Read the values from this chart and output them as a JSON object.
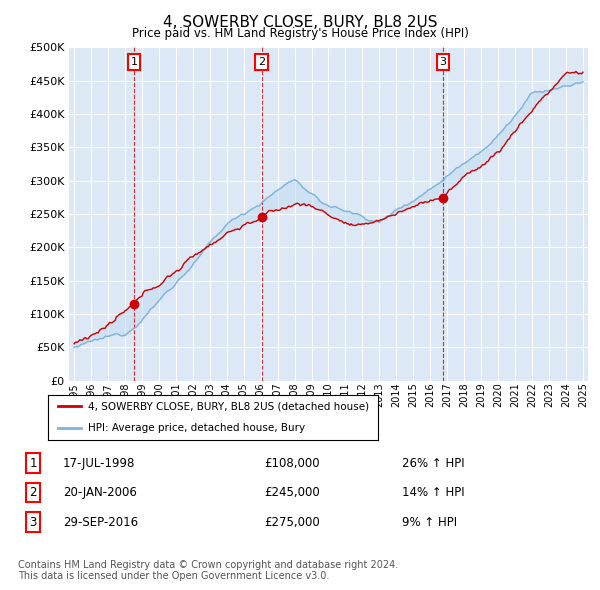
{
  "title": "4, SOWERBY CLOSE, BURY, BL8 2US",
  "subtitle": "Price paid vs. HM Land Registry's House Price Index (HPI)",
  "ylim": [
    0,
    500000
  ],
  "yticks": [
    0,
    50000,
    100000,
    150000,
    200000,
    250000,
    300000,
    350000,
    400000,
    450000,
    500000
  ],
  "background_color": "#ffffff",
  "plot_bg_color": "#dce8f5",
  "grid_color": "#ffffff",
  "sale_color": "#cc0000",
  "hpi_color": "#7fb3d9",
  "fill_color": "#c5ddf0",
  "legend_label_sale": "4, SOWERBY CLOSE, BURY, BL8 2US (detached house)",
  "legend_label_hpi": "HPI: Average price, detached house, Bury",
  "transactions": [
    {
      "num": 1,
      "date": "17-JUL-1998",
      "price": 108000,
      "pct": "26%",
      "year": 1998.54
    },
    {
      "num": 2,
      "date": "20-JAN-2006",
      "price": 245000,
      "pct": "14%",
      "year": 2006.05
    },
    {
      "num": 3,
      "date": "29-SEP-2016",
      "price": 275000,
      "pct": "9%",
      "year": 2016.75
    }
  ],
  "footer": "Contains HM Land Registry data © Crown copyright and database right 2024.\nThis data is licensed under the Open Government Licence v3.0.",
  "start_year": 1995,
  "end_year": 2025
}
